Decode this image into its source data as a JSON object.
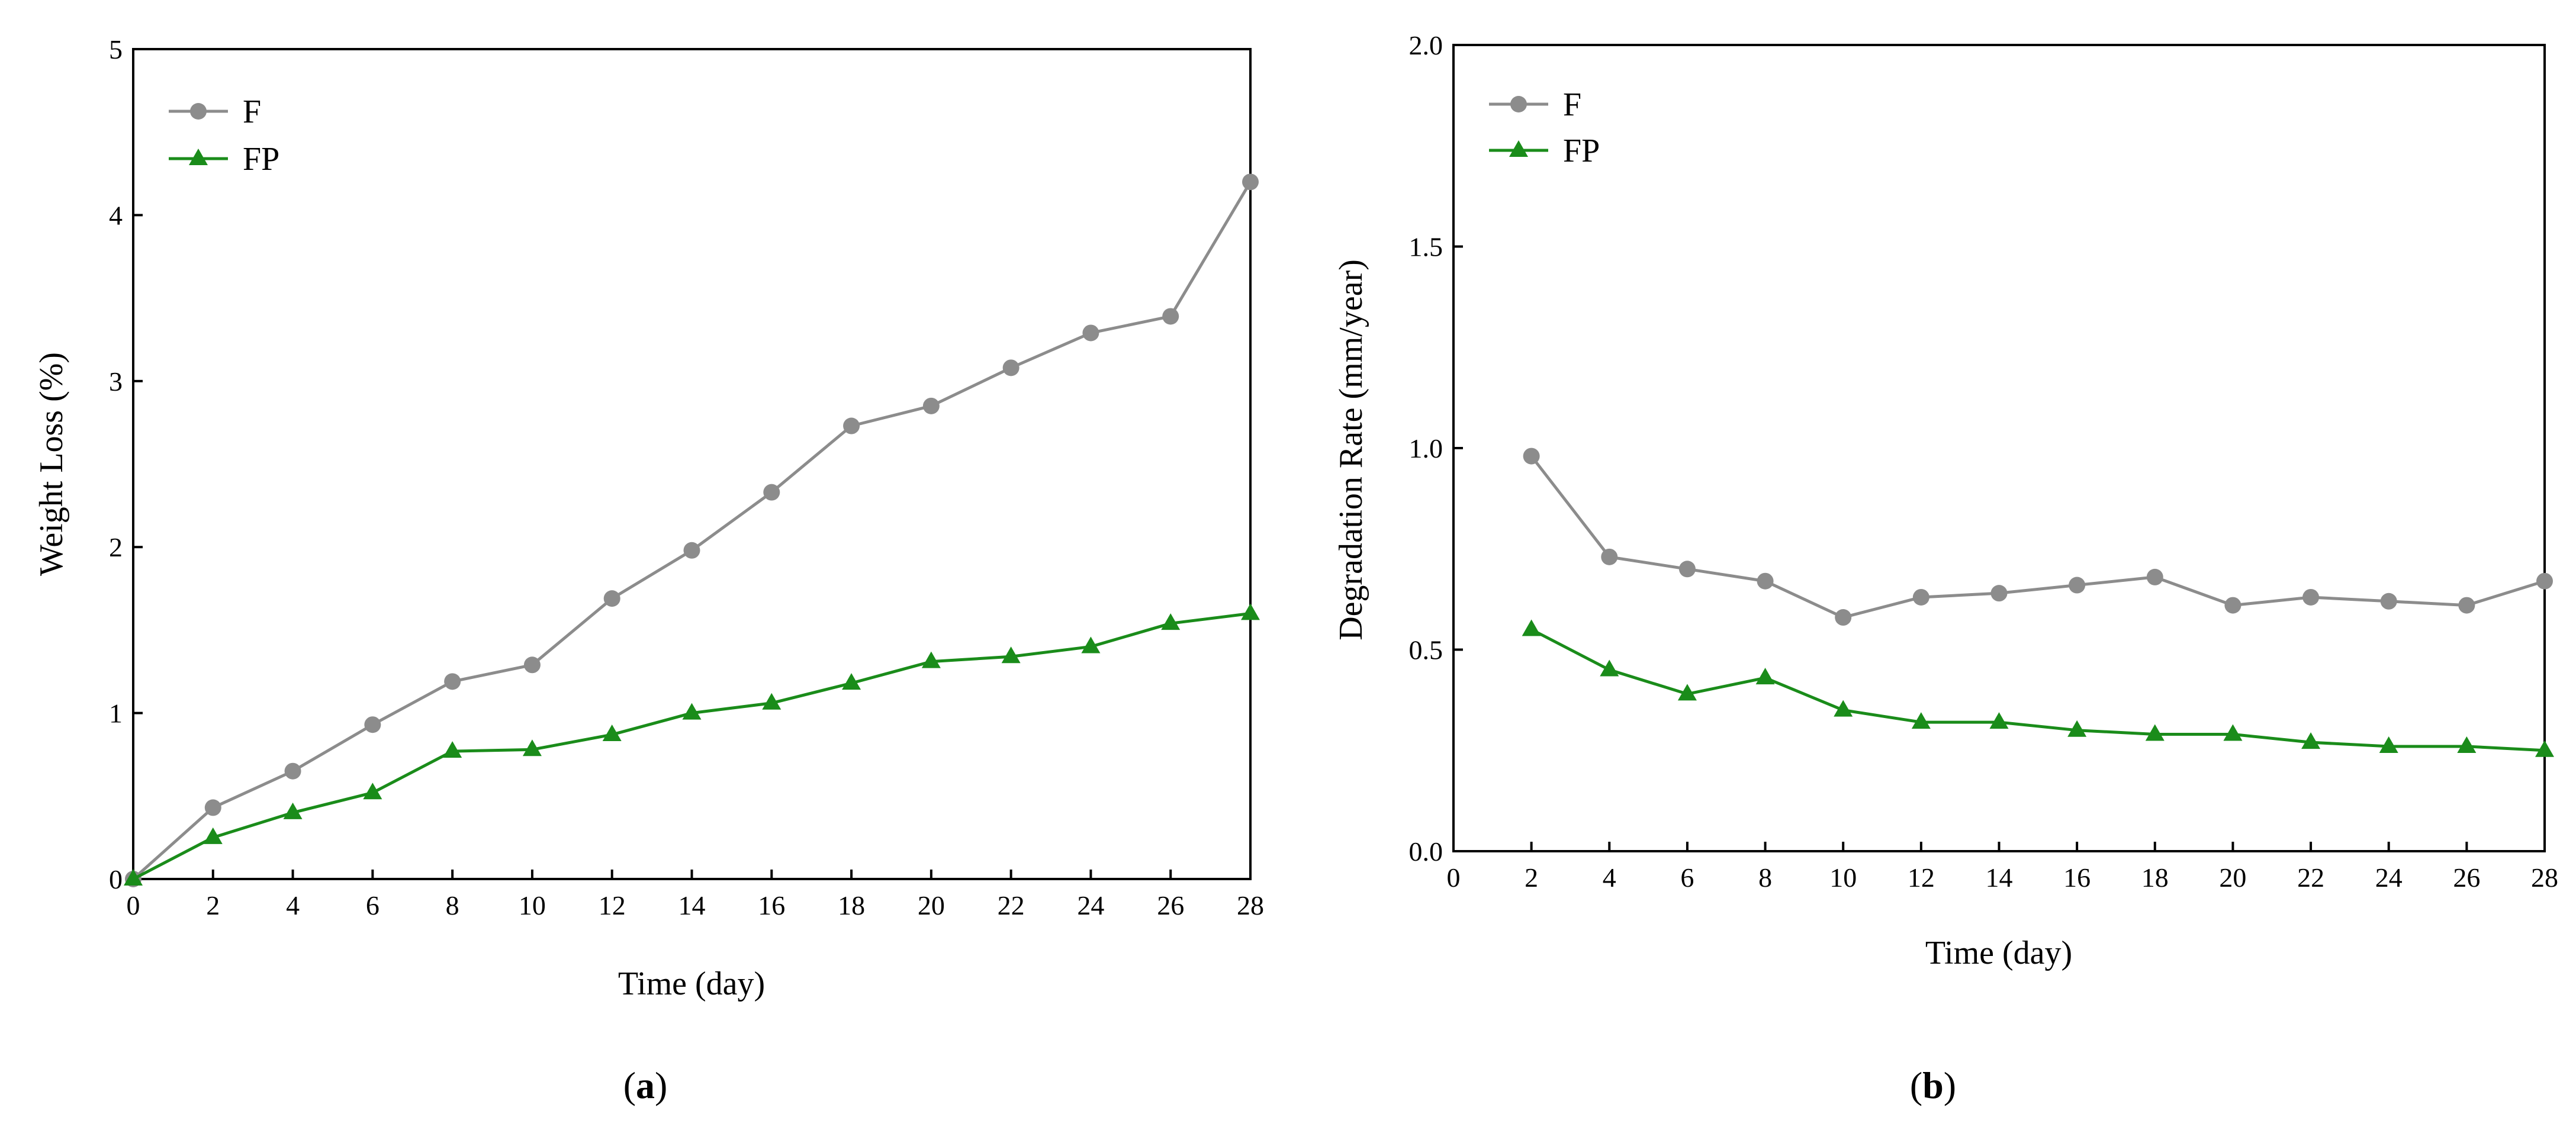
{
  "chart_data": [
    {
      "type": "line",
      "panel_label": "a",
      "title": "",
      "xlabel": "Time (day)",
      "ylabel": "Weight Loss (%)",
      "xlim": [
        0,
        28
      ],
      "ylim": [
        0,
        5
      ],
      "xticks": [
        0,
        2,
        4,
        6,
        8,
        10,
        12,
        14,
        16,
        18,
        20,
        22,
        24,
        26,
        28
      ],
      "yticks": [
        0,
        1,
        2,
        3,
        4,
        5
      ],
      "ytick_labels": [
        "0",
        "1",
        "2",
        "3",
        "4",
        "5"
      ],
      "grid": false,
      "legend": "top-left",
      "series": [
        {
          "name": "F",
          "color": "#8c8c8c",
          "marker": "circle",
          "x": [
            0,
            2,
            4,
            6,
            8,
            10,
            12,
            14,
            16,
            18,
            20,
            22,
            24,
            26,
            28
          ],
          "values": [
            0,
            0.43,
            0.65,
            0.93,
            1.19,
            1.29,
            1.69,
            1.98,
            2.33,
            2.73,
            2.85,
            3.08,
            3.29,
            3.39,
            4.2
          ]
        },
        {
          "name": "FP",
          "color": "#1a8c1a",
          "marker": "triangle",
          "x": [
            0,
            2,
            4,
            6,
            8,
            10,
            12,
            14,
            16,
            18,
            20,
            22,
            24,
            26,
            28
          ],
          "values": [
            0,
            0.25,
            0.4,
            0.52,
            0.77,
            0.78,
            0.87,
            1.0,
            1.06,
            1.18,
            1.31,
            1.34,
            1.4,
            1.54,
            1.6
          ]
        }
      ]
    },
    {
      "type": "line",
      "panel_label": "b",
      "title": "",
      "xlabel": "Time (day)",
      "ylabel": "Degradation Rate (mm/year)",
      "xlim": [
        0,
        28
      ],
      "ylim": [
        0,
        2.0
      ],
      "xticks": [
        0,
        2,
        4,
        6,
        8,
        10,
        12,
        14,
        16,
        18,
        20,
        22,
        24,
        26,
        28
      ],
      "yticks": [
        0,
        0.5,
        1.0,
        1.5,
        2.0
      ],
      "ytick_labels": [
        "0.0",
        "0.5",
        "1.0",
        "1.5",
        "2.0"
      ],
      "grid": false,
      "legend": "top-left",
      "series": [
        {
          "name": "F",
          "color": "#8c8c8c",
          "marker": "circle",
          "x": [
            2,
            4,
            6,
            8,
            10,
            12,
            14,
            16,
            18,
            20,
            22,
            24,
            26,
            28
          ],
          "values": [
            0.98,
            0.73,
            0.7,
            0.67,
            0.58,
            0.63,
            0.64,
            0.66,
            0.68,
            0.61,
            0.63,
            0.62,
            0.61,
            0.67
          ]
        },
        {
          "name": "FP",
          "color": "#1a8c1a",
          "marker": "triangle",
          "x": [
            2,
            4,
            6,
            8,
            10,
            12,
            14,
            16,
            18,
            20,
            22,
            24,
            26,
            28
          ],
          "values": [
            0.55,
            0.45,
            0.39,
            0.43,
            0.35,
            0.32,
            0.32,
            0.3,
            0.29,
            0.29,
            0.27,
            0.26,
            0.26,
            0.25
          ]
        }
      ]
    }
  ],
  "captions": {
    "a": "a",
    "b": "b"
  }
}
